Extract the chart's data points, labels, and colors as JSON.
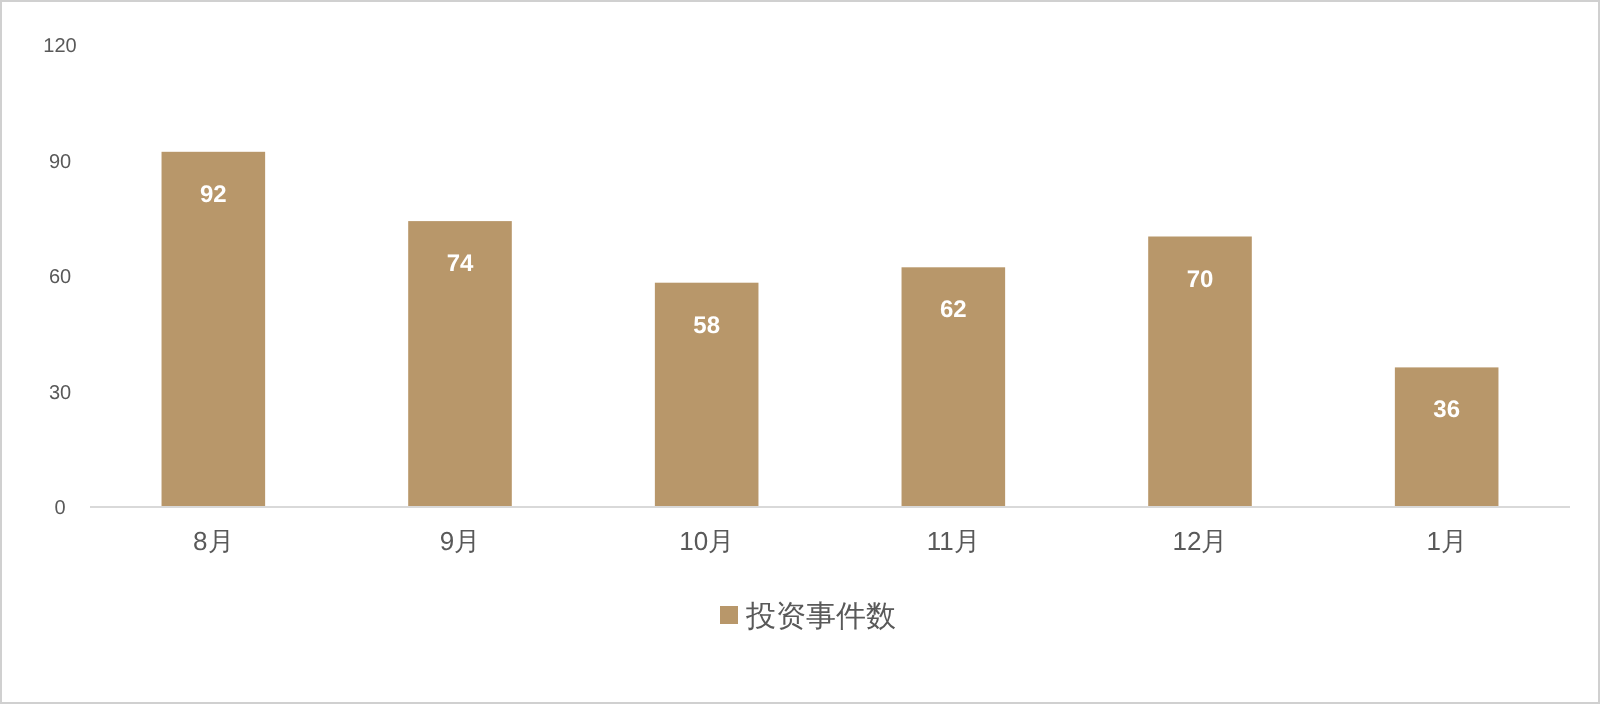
{
  "chart_data": {
    "type": "bar",
    "categories": [
      "8月",
      "9月",
      "10月",
      "11月",
      "12月",
      "1月"
    ],
    "series": [
      {
        "name": "投资事件数",
        "color": "#b8976a",
        "values": [
          92,
          74,
          58,
          62,
          70,
          36
        ]
      }
    ],
    "ylim": [
      0,
      120
    ],
    "yticks": [
      0,
      30,
      60,
      90,
      120
    ],
    "data_labels": true,
    "legend": "bottom"
  }
}
